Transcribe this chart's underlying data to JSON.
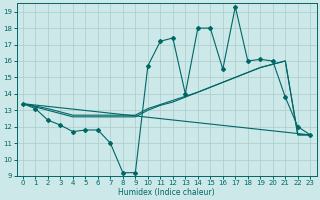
{
  "bg_color": "#cce8e8",
  "grid_color": "#aacccc",
  "line_color": "#006666",
  "xlabel": "Humidex (Indice chaleur)",
  "xlim": [
    -0.5,
    23.5
  ],
  "ylim": [
    9,
    19.5
  ],
  "yticks": [
    9,
    10,
    11,
    12,
    13,
    14,
    15,
    16,
    17,
    18,
    19
  ],
  "xticks": [
    0,
    1,
    2,
    3,
    4,
    5,
    6,
    7,
    8,
    9,
    10,
    11,
    12,
    13,
    14,
    15,
    16,
    17,
    18,
    19,
    20,
    21,
    22,
    23
  ],
  "series1_x": [
    0,
    1,
    2,
    3,
    4,
    5,
    6,
    7,
    8,
    9,
    10,
    11,
    12,
    13,
    14,
    15,
    16,
    17,
    18,
    19,
    20,
    21,
    22,
    23
  ],
  "series1_y": [
    13.4,
    13.1,
    12.4,
    12.1,
    11.7,
    11.8,
    11.8,
    11.0,
    9.2,
    9.2,
    15.7,
    17.2,
    17.4,
    14.0,
    18.0,
    18.0,
    15.5,
    19.3,
    16.0,
    16.1,
    16.0,
    13.8,
    12.0,
    11.5
  ],
  "series2_x": [
    0,
    1,
    2,
    3,
    4,
    5,
    6,
    7,
    8,
    9,
    10,
    11,
    12,
    13,
    14,
    15,
    16,
    17,
    18,
    19,
    20,
    21,
    22,
    23
  ],
  "series2_y": [
    13.4,
    13.2,
    13.0,
    12.8,
    12.6,
    12.6,
    12.6,
    12.6,
    12.6,
    12.6,
    13.0,
    13.3,
    13.5,
    13.8,
    14.1,
    14.4,
    14.7,
    15.0,
    15.3,
    15.6,
    15.8,
    16.0,
    11.5,
    11.5
  ],
  "series3_x": [
    0,
    1,
    2,
    3,
    4,
    5,
    6,
    7,
    8,
    9,
    10,
    11,
    12,
    13,
    14,
    15,
    16,
    17,
    18,
    19,
    20,
    21,
    22,
    23
  ],
  "series3_y": [
    13.4,
    13.25,
    13.1,
    12.9,
    12.7,
    12.7,
    12.7,
    12.7,
    12.7,
    12.7,
    13.1,
    13.35,
    13.6,
    13.85,
    14.1,
    14.4,
    14.7,
    15.0,
    15.3,
    15.6,
    15.8,
    16.0,
    11.5,
    11.5
  ],
  "series4_x": [
    0,
    23
  ],
  "series4_y": [
    13.4,
    11.5
  ]
}
